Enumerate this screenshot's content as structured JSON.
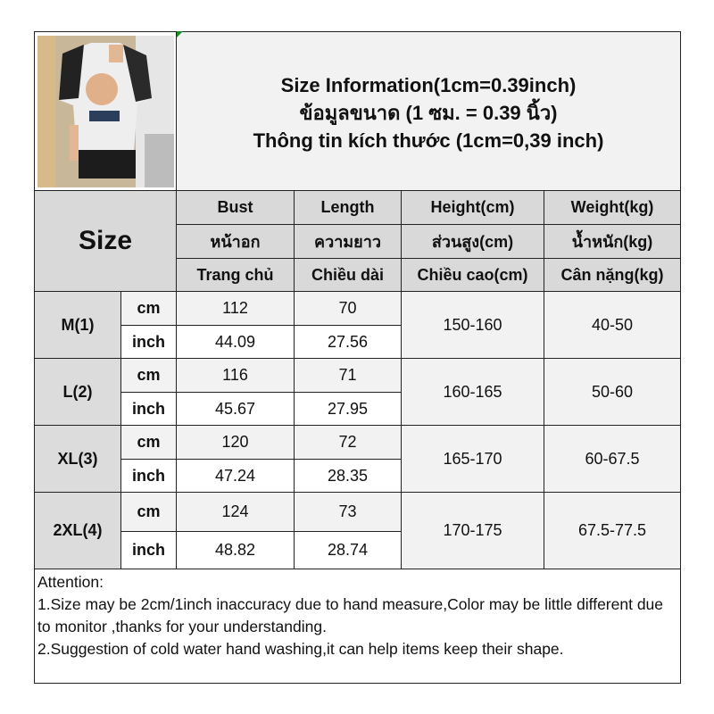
{
  "title": {
    "line1": "Size Information(1cm=0.39inch)",
    "line2": "ข้อมูลขนาด (1 ซม. = 0.39 นิ้ว)",
    "line3": "Thông tin kích thước (1cm=0,39 inch)"
  },
  "size_label": "Size",
  "columns": [
    {
      "en": "Bust",
      "th": "หน้าอก",
      "vi": "Trang chủ"
    },
    {
      "en": "Length",
      "th": "ความยาว",
      "vi": "Chiều dài"
    },
    {
      "en": "Height(cm)",
      "th": "ส่วนสูง(cm)",
      "vi": "Chiều cao(cm)"
    },
    {
      "en": "Weight(kg)",
      "th": "น้ำหนัก(kg)",
      "vi": "Cân nặng(kg)"
    }
  ],
  "unit_cm": "cm",
  "unit_inch": "inch",
  "rows": [
    {
      "size": "M(1)",
      "bust_cm": "112",
      "length_cm": "70",
      "bust_in": "44.09",
      "length_in": "27.56",
      "height": "150-160",
      "weight": "40-50"
    },
    {
      "size": "L(2)",
      "bust_cm": "116",
      "length_cm": "71",
      "bust_in": "45.67",
      "length_in": "27.95",
      "height": "160-165",
      "weight": "50-60"
    },
    {
      "size": "XL(3)",
      "bust_cm": "120",
      "length_cm": "72",
      "bust_in": "47.24",
      "length_in": "28.35",
      "height": "165-170",
      "weight": "60-67.5"
    },
    {
      "size": "2XL(4)",
      "bust_cm": "124",
      "length_cm": "73",
      "bust_in": "48.82",
      "length_in": "28.74",
      "height": "170-175",
      "weight": "67.5-77.5"
    }
  ],
  "attention": {
    "heading": "Attention:",
    "note1": "1.Size may be 2cm/1inch inaccuracy due to hand measure,Color may be little different due to monitor ,thanks for your understanding.",
    "note2": "2.Suggestion of cold water hand washing,it can help items keep their shape."
  },
  "colors": {
    "header_gray": "#d9d9d9",
    "light_gray": "#f2f2f2",
    "border": "#222222"
  }
}
